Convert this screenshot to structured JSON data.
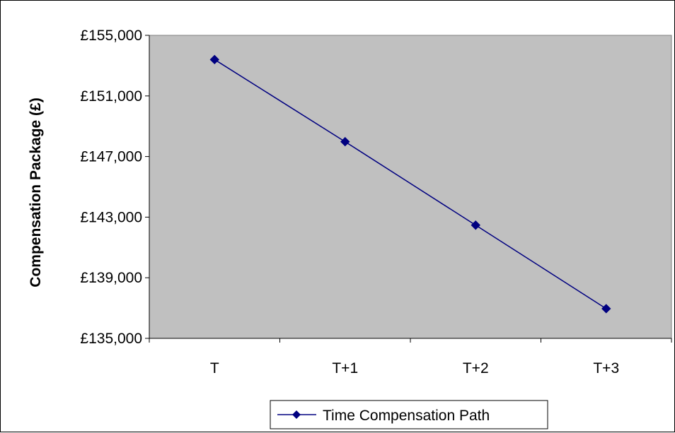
{
  "chart_data": {
    "type": "line",
    "title": "",
    "xlabel": "",
    "ylabel": "Compensation Package (£)",
    "categories": [
      "T",
      "T+1",
      "T+2",
      "T+3"
    ],
    "series": [
      {
        "name": "Time Compensation Path",
        "values": [
          153400,
          147980,
          142470,
          136960
        ],
        "color": "#000080",
        "marker": "diamond"
      }
    ],
    "ylim": [
      135000,
      155000
    ],
    "yticks": [
      135000,
      139000,
      143000,
      147000,
      151000,
      155000
    ],
    "ytick_labels": [
      "£135,000",
      "£139,000",
      "£143,000",
      "£147,000",
      "£151,000",
      "£155,000"
    ],
    "plot_background": "#c0c0c0",
    "grid": false,
    "legend_position": "bottom"
  }
}
